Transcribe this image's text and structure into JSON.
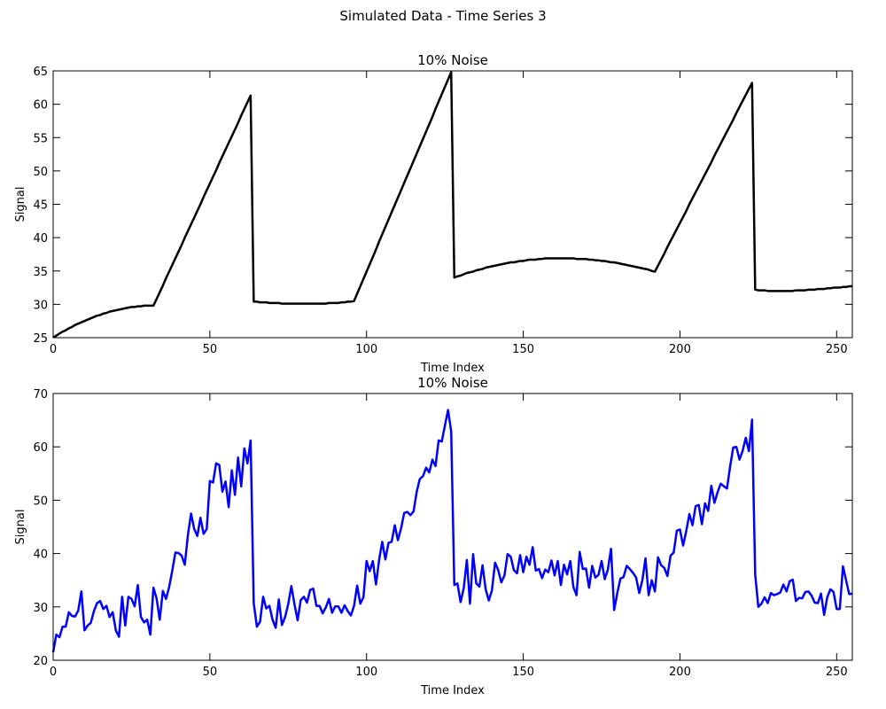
{
  "title": "Simulated Data - Time Series 3",
  "chart_data": [
    {
      "type": "line",
      "title": "10% Noise",
      "x_label": "Time Index",
      "y_label": "Signal",
      "color": "#000000",
      "xlim": [
        0,
        255
      ],
      "xticks": [
        0,
        50,
        100,
        150,
        200,
        250
      ],
      "ylim": [
        25,
        65
      ],
      "yticks": [
        25,
        30,
        35,
        40,
        45,
        50,
        55,
        60,
        65
      ],
      "x": [
        0,
        1,
        2,
        3,
        4,
        5,
        6,
        7,
        8,
        9,
        10,
        11,
        12,
        13,
        14,
        15,
        16,
        17,
        18,
        19,
        20,
        21,
        22,
        23,
        24,
        25,
        26,
        27,
        28,
        29,
        30,
        31,
        32,
        33,
        34,
        35,
        36,
        37,
        38,
        39,
        40,
        41,
        42,
        43,
        44,
        45,
        46,
        47,
        48,
        49,
        50,
        51,
        52,
        53,
        54,
        55,
        56,
        57,
        58,
        59,
        60,
        61,
        62,
        63,
        64,
        65,
        66,
        67,
        68,
        69,
        70,
        71,
        72,
        73,
        74,
        75,
        76,
        77,
        78,
        79,
        80,
        81,
        82,
        83,
        84,
        85,
        86,
        87,
        88,
        89,
        90,
        91,
        92,
        93,
        94,
        95,
        96,
        97,
        98,
        99,
        100,
        101,
        102,
        103,
        104,
        105,
        106,
        107,
        108,
        109,
        110,
        111,
        112,
        113,
        114,
        115,
        116,
        117,
        118,
        119,
        120,
        121,
        122,
        123,
        124,
        125,
        126,
        127,
        128,
        129,
        130,
        131,
        132,
        133,
        134,
        135,
        136,
        137,
        138,
        139,
        140,
        141,
        142,
        143,
        144,
        145,
        146,
        147,
        148,
        149,
        150,
        151,
        152,
        153,
        154,
        155,
        156,
        157,
        158,
        159,
        160,
        161,
        162,
        163,
        164,
        165,
        166,
        167,
        168,
        169,
        170,
        171,
        172,
        173,
        174,
        175,
        176,
        177,
        178,
        179,
        180,
        181,
        182,
        183,
        184,
        185,
        186,
        187,
        188,
        189,
        190,
        191,
        192,
        193,
        194,
        195,
        196,
        197,
        198,
        199,
        200,
        201,
        202,
        203,
        204,
        205,
        206,
        207,
        208,
        209,
        210,
        211,
        212,
        213,
        214,
        215,
        216,
        217,
        218,
        219,
        220,
        221,
        222,
        223,
        224,
        225,
        226,
        227,
        228,
        229,
        230,
        231,
        232,
        233,
        234,
        235,
        236,
        237,
        238,
        239,
        240,
        241,
        242,
        243,
        244,
        245,
        246,
        247,
        248,
        249,
        250,
        251,
        252,
        253,
        254,
        255
      ],
      "values": [
        25.0,
        25.3,
        25.6,
        25.9,
        26.1,
        26.4,
        26.6,
        26.9,
        27.1,
        27.3,
        27.5,
        27.7,
        27.9,
        28.1,
        28.3,
        28.4,
        28.6,
        28.7,
        28.9,
        29.0,
        29.1,
        29.2,
        29.3,
        29.4,
        29.5,
        29.6,
        29.6,
        29.7,
        29.7,
        29.8,
        29.8,
        29.8,
        29.8,
        30.8,
        31.8,
        32.8,
        33.9,
        34.9,
        35.9,
        36.9,
        37.9,
        38.9,
        40.0,
        41.0,
        42.0,
        43.0,
        44.0,
        45.0,
        46.1,
        47.1,
        48.1,
        49.1,
        50.1,
        51.2,
        52.2,
        53.2,
        54.2,
        55.2,
        56.2,
        57.2,
        58.3,
        59.3,
        60.3,
        61.3,
        30.4,
        30.4,
        30.3,
        30.3,
        30.3,
        30.2,
        30.2,
        30.2,
        30.2,
        30.1,
        30.1,
        30.1,
        30.1,
        30.1,
        30.1,
        30.1,
        30.1,
        30.1,
        30.1,
        30.1,
        30.1,
        30.1,
        30.1,
        30.1,
        30.2,
        30.2,
        30.2,
        30.2,
        30.3,
        30.3,
        30.4,
        30.4,
        30.5,
        31.6,
        32.7,
        33.8,
        34.9,
        36.0,
        37.1,
        38.2,
        39.4,
        40.5,
        41.6,
        42.7,
        43.8,
        44.9,
        46.0,
        47.1,
        48.2,
        49.3,
        50.4,
        51.5,
        52.6,
        53.7,
        54.8,
        55.9,
        57.0,
        58.1,
        59.3,
        60.4,
        61.5,
        62.6,
        63.7,
        64.8,
        34.0,
        34.2,
        34.3,
        34.5,
        34.7,
        34.8,
        34.9,
        35.1,
        35.2,
        35.3,
        35.5,
        35.6,
        35.7,
        35.8,
        35.9,
        36.0,
        36.1,
        36.2,
        36.3,
        36.3,
        36.4,
        36.5,
        36.5,
        36.6,
        36.7,
        36.7,
        36.7,
        36.8,
        36.8,
        36.9,
        36.9,
        36.9,
        36.9,
        36.9,
        36.9,
        36.9,
        36.9,
        36.9,
        36.9,
        36.8,
        36.8,
        36.8,
        36.8,
        36.7,
        36.7,
        36.6,
        36.6,
        36.5,
        36.5,
        36.4,
        36.3,
        36.3,
        36.2,
        36.1,
        36.0,
        35.9,
        35.8,
        35.7,
        35.6,
        35.5,
        35.4,
        35.3,
        35.2,
        35.0,
        34.9,
        35.8,
        36.7,
        37.6,
        38.6,
        39.5,
        40.4,
        41.3,
        42.2,
        43.1,
        44.0,
        45.0,
        45.9,
        46.8,
        47.7,
        48.6,
        49.5,
        50.4,
        51.3,
        52.3,
        53.2,
        54.1,
        55.0,
        55.9,
        56.8,
        57.7,
        58.7,
        59.6,
        60.5,
        61.4,
        62.3,
        63.2,
        32.2,
        32.1,
        32.1,
        32.1,
        32.0,
        32.0,
        32.0,
        32.0,
        32.0,
        32.0,
        32.0,
        32.0,
        32.0,
        32.1,
        32.1,
        32.1,
        32.1,
        32.2,
        32.2,
        32.2,
        32.3,
        32.3,
        32.3,
        32.4,
        32.4,
        32.5,
        32.5,
        32.5,
        32.6,
        32.6,
        32.7,
        32.7
      ]
    },
    {
      "type": "line",
      "title": "10% Noise",
      "x_label": "Time Index",
      "y_label": "Signal",
      "color": "#0000ff",
      "xlim": [
        0,
        255
      ],
      "xticks": [
        0,
        50,
        100,
        150,
        200,
        250
      ],
      "ylim": [
        20,
        70
      ],
      "yticks": [
        20,
        30,
        40,
        50,
        60,
        70
      ],
      "x": [
        0,
        1,
        2,
        3,
        4,
        5,
        6,
        7,
        8,
        9,
        10,
        11,
        12,
        13,
        14,
        15,
        16,
        17,
        18,
        19,
        20,
        21,
        22,
        23,
        24,
        25,
        26,
        27,
        28,
        29,
        30,
        31,
        32,
        33,
        34,
        35,
        36,
        37,
        38,
        39,
        40,
        41,
        42,
        43,
        44,
        45,
        46,
        47,
        48,
        49,
        50,
        51,
        52,
        53,
        54,
        55,
        56,
        57,
        58,
        59,
        60,
        61,
        62,
        63,
        64,
        65,
        66,
        67,
        68,
        69,
        70,
        71,
        72,
        73,
        74,
        75,
        76,
        77,
        78,
        79,
        80,
        81,
        82,
        83,
        84,
        85,
        86,
        87,
        88,
        89,
        90,
        91,
        92,
        93,
        94,
        95,
        96,
        97,
        98,
        99,
        100,
        101,
        102,
        103,
        104,
        105,
        106,
        107,
        108,
        109,
        110,
        111,
        112,
        113,
        114,
        115,
        116,
        117,
        118,
        119,
        120,
        121,
        122,
        123,
        124,
        125,
        126,
        127,
        128,
        129,
        130,
        131,
        132,
        133,
        134,
        135,
        136,
        137,
        138,
        139,
        140,
        141,
        142,
        143,
        144,
        145,
        146,
        147,
        148,
        149,
        150,
        151,
        152,
        153,
        154,
        155,
        156,
        157,
        158,
        159,
        160,
        161,
        162,
        163,
        164,
        165,
        166,
        167,
        168,
        169,
        170,
        171,
        172,
        173,
        174,
        175,
        176,
        177,
        178,
        179,
        180,
        181,
        182,
        183,
        184,
        185,
        186,
        187,
        188,
        189,
        190,
        191,
        192,
        193,
        194,
        195,
        196,
        197,
        198,
        199,
        200,
        201,
        202,
        203,
        204,
        205,
        206,
        207,
        208,
        209,
        210,
        211,
        212,
        213,
        214,
        215,
        216,
        217,
        218,
        219,
        220,
        221,
        222,
        223,
        224,
        225,
        226,
        227,
        228,
        229,
        230,
        231,
        232,
        233,
        234,
        235,
        236,
        237,
        238,
        239,
        240,
        241,
        242,
        243,
        244,
        245,
        246,
        247,
        248,
        249,
        250,
        251,
        252,
        253,
        254,
        255
      ],
      "values": [
        21.5,
        24.8,
        24.3,
        26.3,
        26.3,
        29.0,
        28.3,
        28.2,
        29.3,
        32.9,
        25.6,
        26.5,
        27.0,
        29.2,
        30.7,
        31.1,
        29.6,
        30.2,
        28.1,
        29.0,
        25.6,
        24.4,
        31.9,
        26.5,
        31.9,
        31.5,
        30.1,
        34.1,
        28.1,
        27.1,
        27.6,
        24.8,
        33.6,
        31.6,
        27.6,
        33.0,
        31.5,
        33.7,
        36.8,
        40.2,
        40.1,
        39.6,
        37.9,
        43.5,
        47.5,
        44.6,
        43.3,
        46.7,
        43.7,
        44.6,
        53.6,
        53.3,
        56.9,
        56.6,
        51.6,
        53.5,
        48.7,
        55.6,
        51.0,
        58.0,
        52.6,
        59.7,
        56.9,
        61.2,
        30.7,
        26.3,
        27.2,
        31.9,
        29.7,
        30.2,
        27.6,
        26.1,
        31.4,
        26.6,
        28.1,
        30.5,
        33.9,
        30.5,
        27.5,
        31.3,
        31.9,
        30.8,
        33.2,
        33.4,
        30.2,
        30.2,
        28.8,
        29.9,
        31.5,
        28.9,
        30.1,
        30.1,
        28.9,
        30.3,
        29.2,
        28.4,
        30.2,
        34.0,
        30.6,
        31.8,
        38.6,
        36.7,
        38.6,
        34.2,
        38.8,
        42.2,
        38.9,
        42.0,
        42.2,
        45.3,
        42.5,
        44.7,
        47.6,
        47.8,
        47.2,
        47.9,
        51.6,
        54.0,
        54.5,
        56.1,
        55.2,
        57.6,
        56.4,
        61.2,
        61.0,
        64.0,
        66.9,
        62.9,
        34.1,
        34.4,
        30.9,
        33.5,
        38.8,
        30.6,
        39.9,
        34.4,
        33.8,
        37.8,
        33.3,
        31.2,
        33.1,
        38.3,
        36.9,
        34.6,
        35.9,
        39.9,
        39.4,
        36.9,
        36.3,
        39.7,
        36.5,
        39.4,
        37.9,
        41.2,
        36.8,
        37.1,
        35.4,
        37.0,
        36.5,
        38.7,
        35.9,
        38.6,
        34.1,
        37.9,
        36.1,
        38.6,
        33.7,
        32.2,
        40.3,
        37.1,
        37.2,
        33.6,
        37.7,
        35.5,
        36.0,
        38.6,
        35.2,
        37.0,
        40.9,
        29.4,
        32.6,
        35.3,
        35.6,
        37.7,
        37.1,
        36.4,
        35.5,
        32.6,
        35.0,
        39.1,
        32.2,
        35.0,
        32.9,
        39.3,
        37.8,
        37.3,
        35.8,
        39.6,
        40.2,
        44.3,
        44.5,
        41.5,
        44.2,
        47.4,
        45.3,
        48.9,
        49.1,
        45.5,
        49.4,
        48.0,
        52.7,
        49.5,
        51.5,
        53.1,
        52.6,
        52.2,
        56.3,
        59.9,
        60.0,
        57.6,
        59.3,
        61.7,
        59.2,
        65.1,
        36.1,
        30.0,
        30.6,
        31.8,
        30.7,
        32.6,
        32.2,
        32.4,
        32.7,
        34.2,
        32.9,
        34.8,
        35.1,
        31.1,
        31.7,
        31.6,
        32.8,
        32.9,
        32.1,
        30.8,
        30.7,
        32.5,
        28.5,
        31.8,
        33.3,
        32.8,
        29.6,
        29.6,
        37.6,
        35.0,
        32.4,
        32.5
      ]
    }
  ]
}
